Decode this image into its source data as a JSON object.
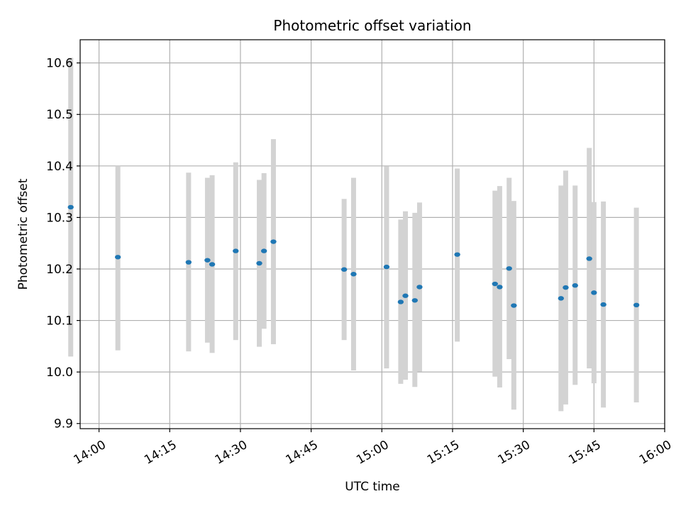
{
  "chart_data": {
    "type": "scatter",
    "title": "Photometric offset variation",
    "xlabel": "UTC time",
    "ylabel": "Photometric offset",
    "x_ticks": [
      "14:00",
      "14:15",
      "14:30",
      "14:45",
      "15:00",
      "15:15",
      "15:30",
      "15:45",
      "16:00"
    ],
    "y_ticks": [
      "9.9",
      "10.0",
      "10.1",
      "10.2",
      "10.3",
      "10.4",
      "10.5",
      "10.6"
    ],
    "xlim": [
      "13:56",
      "16:00"
    ],
    "ylim": [
      9.89,
      10.645
    ],
    "grid": true,
    "colors": {
      "points": "#1f77b4",
      "errorbars": "#d3d3d3",
      "grid": "#b0b0b0"
    },
    "points": [
      {
        "time": "13:54",
        "y": 10.32,
        "low": 10.03,
        "high": 10.61
      },
      {
        "time": "14:04",
        "y": 10.223,
        "low": 10.042,
        "high": 10.4
      },
      {
        "time": "14:19",
        "y": 10.213,
        "low": 10.04,
        "high": 10.387
      },
      {
        "time": "14:23",
        "y": 10.217,
        "low": 10.057,
        "high": 10.377
      },
      {
        "time": "14:24",
        "y": 10.209,
        "low": 10.037,
        "high": 10.382
      },
      {
        "time": "14:29",
        "y": 10.235,
        "low": 10.062,
        "high": 10.407
      },
      {
        "time": "14:34",
        "y": 10.211,
        "low": 10.049,
        "high": 10.373
      },
      {
        "time": "14:35",
        "y": 10.235,
        "low": 10.084,
        "high": 10.386
      },
      {
        "time": "14:37",
        "y": 10.253,
        "low": 10.054,
        "high": 10.452
      },
      {
        "time": "14:52",
        "y": 10.199,
        "low": 10.062,
        "high": 10.336
      },
      {
        "time": "14:54",
        "y": 10.19,
        "low": 10.003,
        "high": 10.377
      },
      {
        "time": "15:01",
        "y": 10.204,
        "low": 10.007,
        "high": 10.399
      },
      {
        "time": "15:04",
        "y": 10.136,
        "low": 9.977,
        "high": 10.296
      },
      {
        "time": "15:05",
        "y": 10.148,
        "low": 9.985,
        "high": 10.312
      },
      {
        "time": "15:07",
        "y": 10.139,
        "low": 9.971,
        "high": 10.309
      },
      {
        "time": "15:08",
        "y": 10.165,
        "low": 10.001,
        "high": 10.329
      },
      {
        "time": "15:16",
        "y": 10.228,
        "low": 10.059,
        "high": 10.395
      },
      {
        "time": "15:24",
        "y": 10.171,
        "low": 9.991,
        "high": 10.352
      },
      {
        "time": "15:25",
        "y": 10.165,
        "low": 9.97,
        "high": 10.361
      },
      {
        "time": "15:27",
        "y": 10.201,
        "low": 10.025,
        "high": 10.377
      },
      {
        "time": "15:28",
        "y": 10.129,
        "low": 9.927,
        "high": 10.332
      },
      {
        "time": "15:38",
        "y": 10.143,
        "low": 9.924,
        "high": 10.362
      },
      {
        "time": "15:39",
        "y": 10.164,
        "low": 9.937,
        "high": 10.391
      },
      {
        "time": "15:41",
        "y": 10.168,
        "low": 9.975,
        "high": 10.362
      },
      {
        "time": "15:44",
        "y": 10.22,
        "low": 10.007,
        "high": 10.435
      },
      {
        "time": "15:45",
        "y": 10.154,
        "low": 9.978,
        "high": 10.33
      },
      {
        "time": "15:47",
        "y": 10.131,
        "low": 9.931,
        "high": 10.331
      },
      {
        "time": "15:54",
        "y": 10.13,
        "low": 9.941,
        "high": 10.319
      }
    ]
  }
}
